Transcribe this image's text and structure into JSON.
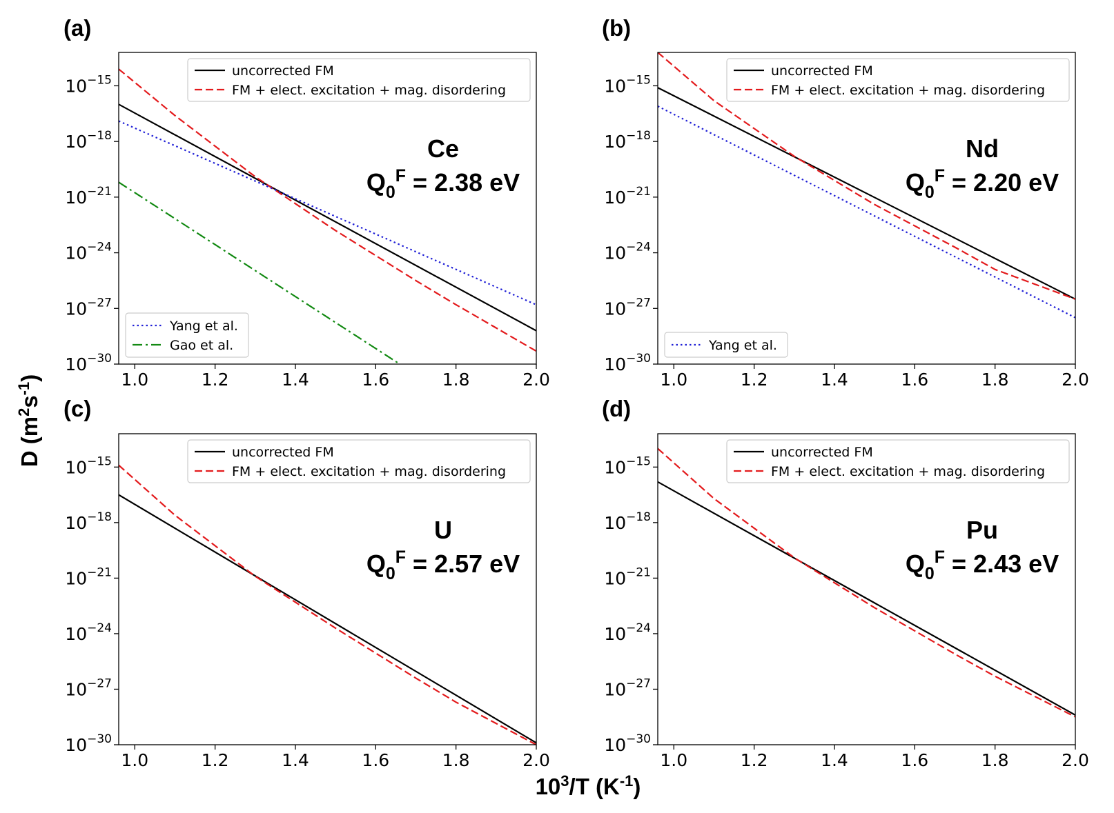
{
  "figure": {
    "ylabel": "D (m²s⁻¹)",
    "ylabel_parts": {
      "base": "D (m",
      "sup1": "2",
      "mid": "s",
      "sup2": "-1",
      "end": ")"
    },
    "xlabel": "10³/T (K⁻¹)",
    "xlabel_parts": {
      "base": "10",
      "sup1": "3",
      "mid": "/T (K",
      "sup2": "-1",
      "end": ")"
    }
  },
  "colors": {
    "uncorrected": "#000000",
    "corrected": "#e31a1c",
    "yang": "#1f1fd6",
    "gao": "#138a13"
  },
  "chart_data": [
    {
      "type": "line",
      "panel_label": "(a)",
      "element": "Ce",
      "energy_label": {
        "q": "Q",
        "sub": "0",
        "sup": "F",
        "rest": " = 2.38 eV"
      },
      "xlim": [
        0.96,
        2.0
      ],
      "ylim_log10": [
        -30,
        -13.2
      ],
      "yscale": "log",
      "xticks": [
        "1.0",
        "1.2",
        "1.4",
        "1.6",
        "1.8",
        "2.0"
      ],
      "yticks": [
        {
          "base": "10",
          "exp": "−15"
        },
        {
          "base": "10",
          "exp": "−18"
        },
        {
          "base": "10",
          "exp": "−21"
        },
        {
          "base": "10",
          "exp": "−24"
        },
        {
          "base": "10",
          "exp": "−27"
        },
        {
          "base": "10",
          "exp": "−30"
        }
      ],
      "legend_top": [
        "uncorrected FM",
        "FM + elect. excitation + mag. disordering"
      ],
      "legend_bottom": [
        "Yang et al.",
        "Gao et al."
      ],
      "series": [
        {
          "name": "uncorrected FM",
          "style": "solid",
          "x": [
            0.96,
            2.0
          ],
          "log10_y": [
            -16.0,
            -28.2
          ]
        },
        {
          "name": "FM + elect. excitation + mag. disordering",
          "style": "dashed",
          "x": [
            0.96,
            1.1,
            1.3,
            1.5,
            1.7,
            1.8,
            2.0
          ],
          "log10_y": [
            -14.1,
            -16.6,
            -19.9,
            -22.8,
            -25.5,
            -26.8,
            -29.3
          ]
        },
        {
          "name": "Yang et al.",
          "style": "dotted",
          "x": [
            0.96,
            2.0
          ],
          "log10_y": [
            -16.9,
            -26.8
          ]
        },
        {
          "name": "Gao et al.",
          "style": "dashdot",
          "x": [
            0.96,
            1.66
          ],
          "log10_y": [
            -20.2,
            -30.0
          ]
        }
      ]
    },
    {
      "type": "line",
      "panel_label": "(b)",
      "element": "Nd",
      "energy_label": {
        "q": "Q",
        "sub": "0",
        "sup": "F",
        "rest": " = 2.20 eV"
      },
      "xlim": [
        0.96,
        2.0
      ],
      "ylim_log10": [
        -30,
        -13.2
      ],
      "yscale": "log",
      "xticks": [
        "1.0",
        "1.2",
        "1.4",
        "1.6",
        "1.8",
        "2.0"
      ],
      "yticks": [
        {
          "base": "10",
          "exp": "−15"
        },
        {
          "base": "10",
          "exp": "−18"
        },
        {
          "base": "10",
          "exp": "−21"
        },
        {
          "base": "10",
          "exp": "−24"
        },
        {
          "base": "10",
          "exp": "−27"
        },
        {
          "base": "10",
          "exp": "−30"
        }
      ],
      "legend_top": [
        "uncorrected FM",
        "FM + elect. excitation + mag. disordering"
      ],
      "legend_bottom": [
        "Yang et al."
      ],
      "series": [
        {
          "name": "uncorrected FM",
          "style": "solid",
          "x": [
            0.96,
            2.0
          ],
          "log10_y": [
            -15.1,
            -26.5
          ]
        },
        {
          "name": "FM + elect. excitation + mag. disordering",
          "style": "dashed",
          "x": [
            0.96,
            1.1,
            1.3,
            1.5,
            1.7,
            1.8,
            2.0
          ],
          "log10_y": [
            -13.2,
            -15.8,
            -18.8,
            -21.4,
            -23.7,
            -24.9,
            -26.5
          ]
        },
        {
          "name": "Yang et al.",
          "style": "dotted",
          "x": [
            0.96,
            2.0
          ],
          "log10_y": [
            -16.1,
            -27.5
          ]
        }
      ]
    },
    {
      "type": "line",
      "panel_label": "(c)",
      "element": "U",
      "energy_label": {
        "q": "Q",
        "sub": "0",
        "sup": "F",
        "rest": " = 2.57 eV"
      },
      "xlim": [
        0.96,
        2.0
      ],
      "ylim_log10": [
        -30,
        -13.2
      ],
      "yscale": "log",
      "xticks": [
        "1.0",
        "1.2",
        "1.4",
        "1.6",
        "1.8",
        "2.0"
      ],
      "yticks": [
        {
          "base": "10",
          "exp": "−15"
        },
        {
          "base": "10",
          "exp": "−18"
        },
        {
          "base": "10",
          "exp": "−21"
        },
        {
          "base": "10",
          "exp": "−24"
        },
        {
          "base": "10",
          "exp": "−27"
        },
        {
          "base": "10",
          "exp": "−30"
        }
      ],
      "legend_top": [
        "uncorrected FM",
        "FM + elect. excitation + mag. disordering"
      ],
      "legend_bottom": [],
      "series": [
        {
          "name": "uncorrected FM",
          "style": "solid",
          "x": [
            0.96,
            2.0
          ],
          "log10_y": [
            -16.5,
            -29.9
          ]
        },
        {
          "name": "FM + elect. excitation + mag. disordering",
          "style": "dashed",
          "x": [
            0.96,
            1.1,
            1.3,
            1.5,
            1.7,
            1.8,
            2.0
          ],
          "log10_y": [
            -14.9,
            -17.6,
            -20.9,
            -23.7,
            -26.4,
            -27.7,
            -30.0
          ]
        }
      ]
    },
    {
      "type": "line",
      "panel_label": "(d)",
      "element": "Pu",
      "energy_label": {
        "q": "Q",
        "sub": "0",
        "sup": "F",
        "rest": " = 2.43 eV"
      },
      "xlim": [
        0.96,
        2.0
      ],
      "ylim_log10": [
        -30,
        -13.2
      ],
      "yscale": "log",
      "xticks": [
        "1.0",
        "1.2",
        "1.4",
        "1.6",
        "1.8",
        "2.0"
      ],
      "yticks": [
        {
          "base": "10",
          "exp": "−15"
        },
        {
          "base": "10",
          "exp": "−18"
        },
        {
          "base": "10",
          "exp": "−21"
        },
        {
          "base": "10",
          "exp": "−24"
        },
        {
          "base": "10",
          "exp": "−27"
        },
        {
          "base": "10",
          "exp": "−30"
        }
      ],
      "legend_top": [
        "uncorrected FM",
        "FM + elect. excitation + mag. disordering"
      ],
      "legend_bottom": [],
      "series": [
        {
          "name": "uncorrected FM",
          "style": "solid",
          "x": [
            0.96,
            2.0
          ],
          "log10_y": [
            -15.8,
            -28.4
          ]
        },
        {
          "name": "FM + elect. excitation + mag. disordering",
          "style": "dashed",
          "x": [
            0.96,
            1.1,
            1.3,
            1.5,
            1.7,
            1.8,
            2.0
          ],
          "log10_y": [
            -14.0,
            -16.7,
            -19.9,
            -22.6,
            -25.1,
            -26.3,
            -28.5
          ]
        }
      ]
    }
  ]
}
